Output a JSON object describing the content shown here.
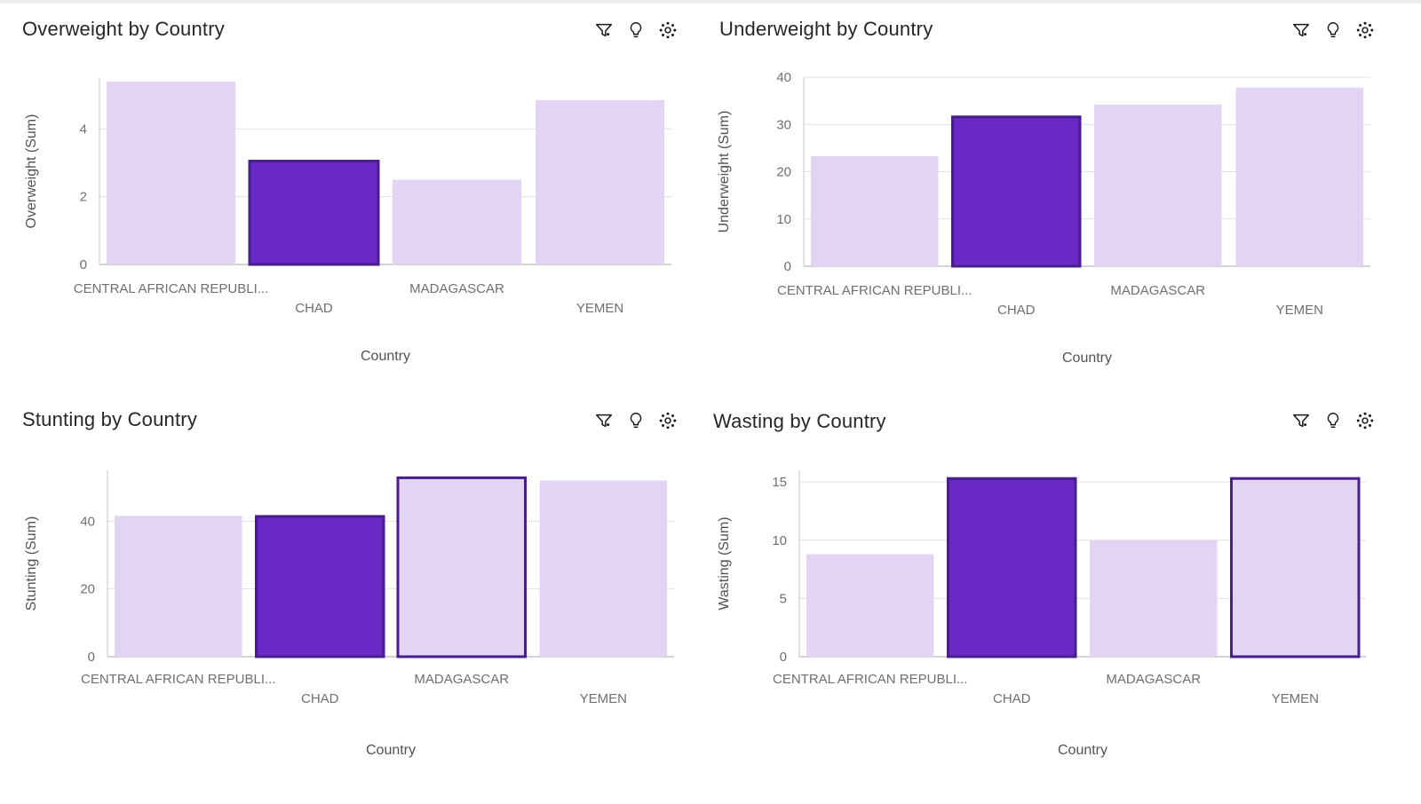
{
  "colors": {
    "bar_light": "#e1d5f3",
    "bar_selected": "#6929c4",
    "bar_selected_stroke": "#491d8b",
    "outline_stroke": "#491d8b",
    "grid": "#e0e0e0",
    "axis": "#c6c6c6"
  },
  "icons": [
    "filter-icon",
    "lightbulb-icon",
    "settings-icon"
  ],
  "chart_data": [
    {
      "type": "bar",
      "title": "Overweight by Country",
      "xlabel": "Country",
      "ylabel": "Overweight (Sum)",
      "categories": [
        "CENTRAL AFRICAN REPUBLI...",
        "CHAD",
        "MADAGASCAR",
        "YEMEN"
      ],
      "values": [
        5.4,
        3.05,
        2.5,
        4.85
      ],
      "ylim": [
        0,
        5.5
      ],
      "yticks": [
        0,
        2,
        4
      ],
      "states": [
        "normal",
        "selected",
        "normal",
        "normal"
      ],
      "grid": true
    },
    {
      "type": "bar",
      "title": "Underweight by Country",
      "xlabel": "Country",
      "ylabel": "Underweight (Sum)",
      "categories": [
        "CENTRAL AFRICAN REPUBLI...",
        "CHAD",
        "MADAGASCAR",
        "YEMEN"
      ],
      "values": [
        23.3,
        31.6,
        34.2,
        37.8
      ],
      "ylim": [
        0,
        40
      ],
      "yticks": [
        0,
        10,
        20,
        30,
        40
      ],
      "states": [
        "normal",
        "selected",
        "normal",
        "normal"
      ],
      "grid": true
    },
    {
      "type": "bar",
      "title": "Stunting by Country",
      "xlabel": "Country",
      "ylabel": "Stunting (Sum)",
      "categories": [
        "CENTRAL AFRICAN REPUBLI...",
        "CHAD",
        "MADAGASCAR",
        "YEMEN"
      ],
      "values": [
        41.6,
        41.4,
        52.8,
        52.0
      ],
      "ylim": [
        0,
        55
      ],
      "yticks": [
        0,
        20,
        40
      ],
      "states": [
        "normal",
        "selected",
        "outlined",
        "normal"
      ],
      "grid": true
    },
    {
      "type": "bar",
      "title": "Wasting by Country",
      "xlabel": "Country",
      "ylabel": "Wasting (Sum)",
      "categories": [
        "CENTRAL AFRICAN REPUBLI...",
        "CHAD",
        "MADAGASCAR",
        "YEMEN"
      ],
      "values": [
        8.8,
        15.3,
        10.0,
        15.3
      ],
      "ylim": [
        0,
        16
      ],
      "yticks": [
        0,
        5,
        10,
        15
      ],
      "states": [
        "normal",
        "selected",
        "normal",
        "outlined"
      ],
      "grid": true
    }
  ]
}
